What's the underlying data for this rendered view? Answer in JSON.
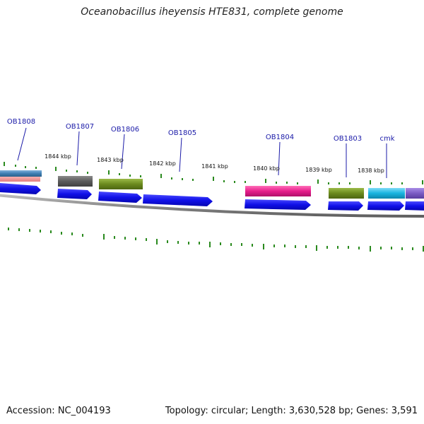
{
  "title": "Oceanobacillus iheyensis HTE831, complete genome",
  "footer": {
    "accession": "Accession: NC_004193",
    "stats": "Topology: circular; Length: 3,630,528 bp; Genes: 3,591"
  },
  "kbp_labels": [
    "1844 kbp",
    "1843 kbp",
    "1842 kbp",
    "1841 kbp",
    "1840 kbp",
    "1839 kbp",
    "1838 kbp"
  ],
  "gene_labels": [
    "OB1808",
    "OB1807",
    "OB1806",
    "OB1805",
    "OB1804",
    "OB1803",
    "cmk"
  ],
  "colors": {
    "forward_cds": "#1010e8",
    "backbone": "#8c8c8c",
    "gc_ticks": "#2a8a1e",
    "label_text": "#1a1aa8",
    "feature_blue": "#3f7fb3",
    "feature_gray": "#616161",
    "feature_green": "#6b8a1e",
    "feature_magenta": "#e61e8c",
    "feature_cyan": "#19b4e0",
    "feature_purple": "#7b5cc4"
  }
}
